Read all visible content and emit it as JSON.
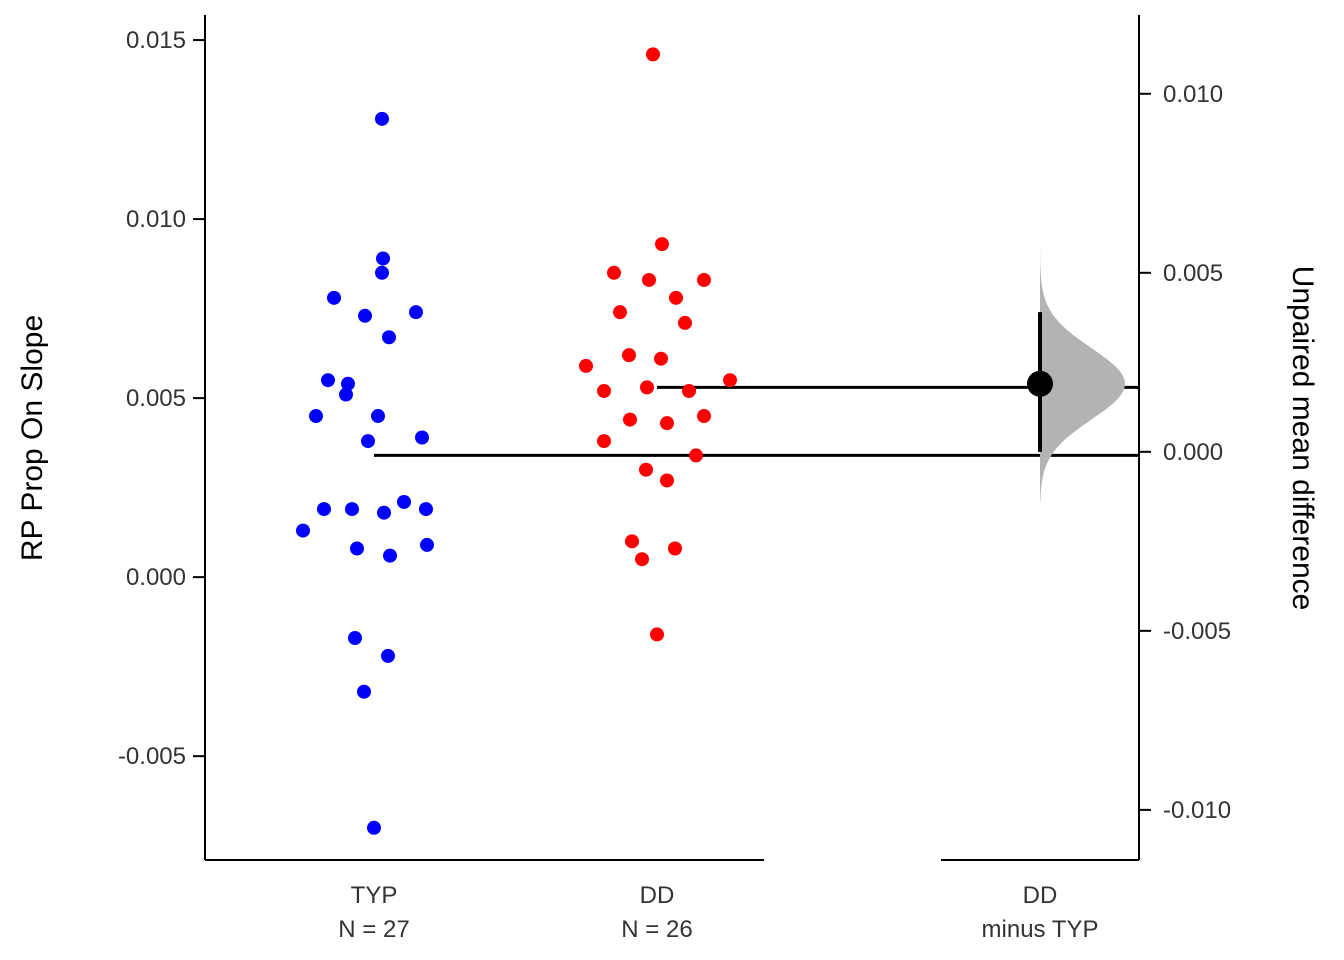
{
  "chart_data": {
    "type": "scatter",
    "subtype": "estimation-plot (Gardner-Altman)",
    "ylabel_left": "RP Prop On Slope",
    "ylabel_right": "Unpaired mean difference",
    "ylim_left": [
      -0.0079,
      0.0157
    ],
    "ylim_right": [
      -0.0114,
      0.0122
    ],
    "yticks_left": [
      "-0.005",
      "0.000",
      "0.005",
      "0.010",
      "0.015"
    ],
    "yticks_right": [
      "-0.010",
      "-0.005",
      "0.000",
      "0.005",
      "0.010"
    ],
    "groups": [
      {
        "label": "TYP",
        "n_label": "N = 27",
        "color": "#0000ff",
        "values": [
          0.0128,
          0.0089,
          0.0085,
          0.0078,
          0.0074,
          0.0073,
          0.0067,
          0.0055,
          0.0054,
          0.0051,
          0.0045,
          0.0045,
          0.0039,
          0.0038,
          0.0021,
          0.0019,
          0.0019,
          0.0019,
          0.0018,
          0.0013,
          0.0009,
          0.0008,
          0.0006,
          -0.0017,
          -0.0022,
          -0.0032,
          -0.007
        ]
      },
      {
        "label": "DD",
        "n_label": "N = 26",
        "color": "#ff0000",
        "values": [
          0.0146,
          0.0093,
          0.0085,
          0.0083,
          0.0083,
          0.0078,
          0.0074,
          0.0071,
          0.0062,
          0.0061,
          0.0059,
          0.0055,
          0.0053,
          0.0052,
          0.0052,
          0.0045,
          0.0044,
          0.0043,
          0.0038,
          0.0034,
          0.003,
          0.0027,
          0.001,
          0.0008,
          0.0005,
          -0.0016
        ]
      }
    ],
    "mean_lines": {
      "TYP": 0.0034,
      "DD": 0.0053
    },
    "difference": {
      "label": "DD",
      "sublabel": "minus TYP",
      "mean": 0.0019,
      "ci": [
        0.0,
        0.0039
      ],
      "distribution_range": [
        -0.0014,
        0.0061
      ],
      "distribution_color": "#b3b3b3"
    }
  }
}
